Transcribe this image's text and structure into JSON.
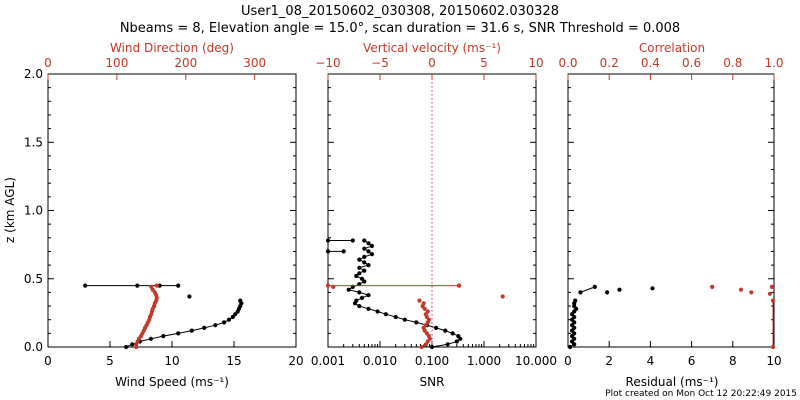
{
  "header": {
    "title_line1": "User1_08_20150602_030308, 20150602.030328",
    "title_line2": "Nbeams = 8, Elevation angle = 15.0°, scan duration = 31.6 s, SNR Threshold = 0.008"
  },
  "footer": {
    "created": "Plot created on Mon Oct 12 20:22:49 2015"
  },
  "colors": {
    "black": "#000000",
    "red": "#c0392b"
  },
  "chart_data": [
    {
      "type": "scatter",
      "panel": "wind",
      "title": "",
      "ylabel": "z (km AGL)",
      "ylim": [
        0,
        2.0
      ],
      "yticks": [
        "0.0",
        "0.5",
        "1.0",
        "1.5",
        "2.0"
      ],
      "bottom_axis": {
        "label": "Wind Speed (ms⁻¹)",
        "xlim": [
          0,
          20
        ],
        "ticks": [
          "0",
          "5",
          "10",
          "15",
          "20"
        ]
      },
      "top_axis": {
        "label": "Wind Direction (deg)",
        "xlim": [
          0,
          360
        ],
        "ticks": [
          "0",
          "100",
          "200",
          "300"
        ]
      },
      "series": [
        {
          "axis": "bottom",
          "color": "#000000",
          "line": true,
          "points": [
            [
              6.3,
              0.0
            ],
            [
              6.8,
              0.02
            ],
            [
              7.4,
              0.04
            ],
            [
              8.3,
              0.06
            ],
            [
              9.3,
              0.08
            ],
            [
              10.5,
              0.1
            ],
            [
              11.6,
              0.12
            ],
            [
              12.6,
              0.14
            ],
            [
              13.5,
              0.16
            ],
            [
              14.2,
              0.18
            ],
            [
              14.6,
              0.2
            ],
            [
              14.9,
              0.22
            ],
            [
              15.1,
              0.24
            ],
            [
              15.3,
              0.26
            ],
            [
              15.4,
              0.28
            ],
            [
              15.5,
              0.3
            ],
            [
              15.6,
              0.32
            ],
            [
              15.5,
              0.34
            ]
          ]
        },
        {
          "axis": "bottom",
          "color": "#000000",
          "line": true,
          "points": [
            [
              3.0,
              0.45
            ],
            [
              7.2,
              0.45
            ],
            [
              9.0,
              0.45
            ],
            [
              10.5,
              0.45
            ]
          ]
        },
        {
          "axis": "bottom",
          "color": "#000000",
          "line": false,
          "points": [
            [
              11.4,
              0.37
            ]
          ]
        },
        {
          "axis": "top",
          "color": "#c0392b",
          "line": false,
          "points": [
            [
              128,
              0.0
            ],
            [
              128,
              0.02
            ],
            [
              130,
              0.04
            ],
            [
              132,
              0.06
            ],
            [
              135,
              0.08
            ],
            [
              137,
              0.1
            ],
            [
              139,
              0.12
            ],
            [
              141,
              0.14
            ],
            [
              143,
              0.16
            ],
            [
              145,
              0.18
            ],
            [
              147,
              0.2
            ],
            [
              148,
              0.22
            ],
            [
              150,
              0.24
            ],
            [
              151,
              0.26
            ],
            [
              152,
              0.28
            ],
            [
              154,
              0.3
            ],
            [
              155,
              0.32
            ],
            [
              157,
              0.34
            ],
            [
              158,
              0.36
            ],
            [
              157,
              0.38
            ],
            [
              155,
              0.4
            ],
            [
              152,
              0.42
            ],
            [
              150,
              0.44
            ],
            [
              158,
              0.45
            ]
          ]
        }
      ]
    },
    {
      "type": "scatter",
      "panel": "snr",
      "title": "",
      "ylim": [
        0,
        2.0
      ],
      "bottom_axis": {
        "label": "SNR",
        "scale": "log",
        "xlim": [
          0.001,
          10.0
        ],
        "ticks": [
          "0.001",
          "0.010",
          "0.100",
          "1.000",
          "10.000"
        ]
      },
      "top_axis": {
        "label": "Vertical velocity (ms⁻¹)",
        "xlim": [
          -10,
          10
        ],
        "ticks": [
          "−10",
          "−5",
          "0",
          "5",
          "10"
        ]
      },
      "zero_line": {
        "axis": "top",
        "x": 0,
        "style": "dotted"
      },
      "series": [
        {
          "axis": "bottom",
          "color": "#000000",
          "line": true,
          "points": [
            [
              0.1,
              0.0
            ],
            [
              0.2,
              0.02
            ],
            [
              0.3,
              0.04
            ],
            [
              0.35,
              0.06
            ],
            [
              0.32,
              0.08
            ],
            [
              0.25,
              0.1
            ],
            [
              0.18,
              0.12
            ],
            [
              0.12,
              0.14
            ],
            [
              0.08,
              0.16
            ],
            [
              0.05,
              0.18
            ],
            [
              0.03,
              0.2
            ],
            [
              0.02,
              0.22
            ],
            [
              0.013,
              0.24
            ],
            [
              0.009,
              0.26
            ],
            [
              0.006,
              0.28
            ],
            [
              0.004,
              0.3
            ],
            [
              0.0033,
              0.32
            ],
            [
              0.0035,
              0.34
            ],
            [
              0.0045,
              0.36
            ],
            [
              0.006,
              0.38
            ],
            [
              0.004,
              0.4
            ],
            [
              0.0025,
              0.42
            ],
            [
              0.003,
              0.44
            ],
            [
              0.004,
              0.46
            ],
            [
              0.005,
              0.48
            ],
            [
              0.0045,
              0.5
            ],
            [
              0.0035,
              0.52
            ],
            [
              0.004,
              0.54
            ],
            [
              0.005,
              0.56
            ],
            [
              0.004,
              0.58
            ],
            [
              0.006,
              0.6
            ],
            [
              0.005,
              0.62
            ],
            [
              0.004,
              0.64
            ],
            [
              0.005,
              0.66
            ],
            [
              0.007,
              0.68
            ],
            [
              0.006,
              0.7
            ],
            [
              0.005,
              0.72
            ],
            [
              0.007,
              0.74
            ],
            [
              0.006,
              0.76
            ],
            [
              0.005,
              0.78
            ]
          ]
        },
        {
          "axis": "bottom",
          "color": "#000000",
          "line": true,
          "points": [
            [
              0.001,
              0.78
            ],
            [
              0.003,
              0.78
            ]
          ]
        },
        {
          "axis": "bottom",
          "color": "#000000",
          "line": true,
          "points": [
            [
              0.001,
              0.7
            ],
            [
              0.002,
              0.7
            ]
          ]
        },
        {
          "axis": "top",
          "color": "#c0392b",
          "line": false,
          "points": [
            [
              -1.0,
              0.0
            ],
            [
              -0.6,
              0.02
            ],
            [
              -0.4,
              0.04
            ],
            [
              -0.2,
              0.06
            ],
            [
              -0.3,
              0.08
            ],
            [
              -0.5,
              0.1
            ],
            [
              -0.7,
              0.12
            ],
            [
              -0.8,
              0.14
            ],
            [
              -0.6,
              0.16
            ],
            [
              -0.4,
              0.18
            ],
            [
              -0.3,
              0.2
            ],
            [
              -0.5,
              0.22
            ],
            [
              -0.6,
              0.24
            ],
            [
              -0.4,
              0.26
            ],
            [
              -0.7,
              0.28
            ],
            [
              -0.9,
              0.3
            ],
            [
              -0.8,
              0.32
            ],
            [
              -1.2,
              0.34
            ],
            [
              6.8,
              0.37
            ],
            [
              -9.5,
              0.44
            ],
            [
              2.6,
              0.45
            ]
          ]
        },
        {
          "axis": "top",
          "color": "#c0392b",
          "line": true,
          "points": [
            [
              -10,
              0.45
            ],
            [
              2.6,
              0.45
            ]
          ]
        }
      ]
    },
    {
      "type": "scatter",
      "panel": "residual",
      "title": "",
      "ylim": [
        0,
        2.0
      ],
      "bottom_axis": {
        "label": "Residual (ms⁻¹)",
        "xlim": [
          0,
          10
        ],
        "ticks": [
          "0",
          "2",
          "4",
          "6",
          "8",
          "10"
        ]
      },
      "top_axis": {
        "label": "Correlation",
        "xlim": [
          0,
          1.0
        ],
        "ticks": [
          "0.0",
          "0.2",
          "0.4",
          "0.6",
          "0.8",
          "1.0"
        ]
      },
      "series": [
        {
          "axis": "bottom",
          "color": "#000000",
          "line": true,
          "points": [
            [
              0.1,
              0.0
            ],
            [
              0.3,
              0.02
            ],
            [
              0.2,
              0.04
            ],
            [
              0.3,
              0.06
            ],
            [
              0.2,
              0.08
            ],
            [
              0.3,
              0.1
            ],
            [
              0.2,
              0.12
            ],
            [
              0.3,
              0.14
            ],
            [
              0.2,
              0.16
            ],
            [
              0.3,
              0.18
            ],
            [
              0.2,
              0.2
            ],
            [
              0.3,
              0.22
            ],
            [
              0.2,
              0.24
            ],
            [
              0.3,
              0.26
            ],
            [
              0.4,
              0.28
            ],
            [
              0.3,
              0.3
            ],
            [
              0.3,
              0.32
            ],
            [
              0.35,
              0.34
            ]
          ]
        },
        {
          "axis": "bottom",
          "color": "#000000",
          "line": true,
          "points": [
            [
              0.6,
              0.4
            ],
            [
              1.3,
              0.44
            ]
          ]
        },
        {
          "axis": "bottom",
          "color": "#000000",
          "line": false,
          "points": [
            [
              1.9,
              0.4
            ],
            [
              2.5,
              0.42
            ],
            [
              4.1,
              0.43
            ]
          ]
        },
        {
          "axis": "top",
          "color": "#c0392b",
          "line": false,
          "points": [
            [
              0.7,
              0.44
            ],
            [
              0.84,
              0.42
            ],
            [
              0.89,
              0.4
            ],
            [
              0.99,
              0.44
            ],
            [
              0.98,
              0.39
            ]
          ]
        },
        {
          "axis": "top",
          "color": "#c0392b",
          "line": true,
          "points": [
            [
              0.995,
              0.0
            ],
            [
              0.995,
              0.34
            ]
          ]
        }
      ]
    }
  ]
}
